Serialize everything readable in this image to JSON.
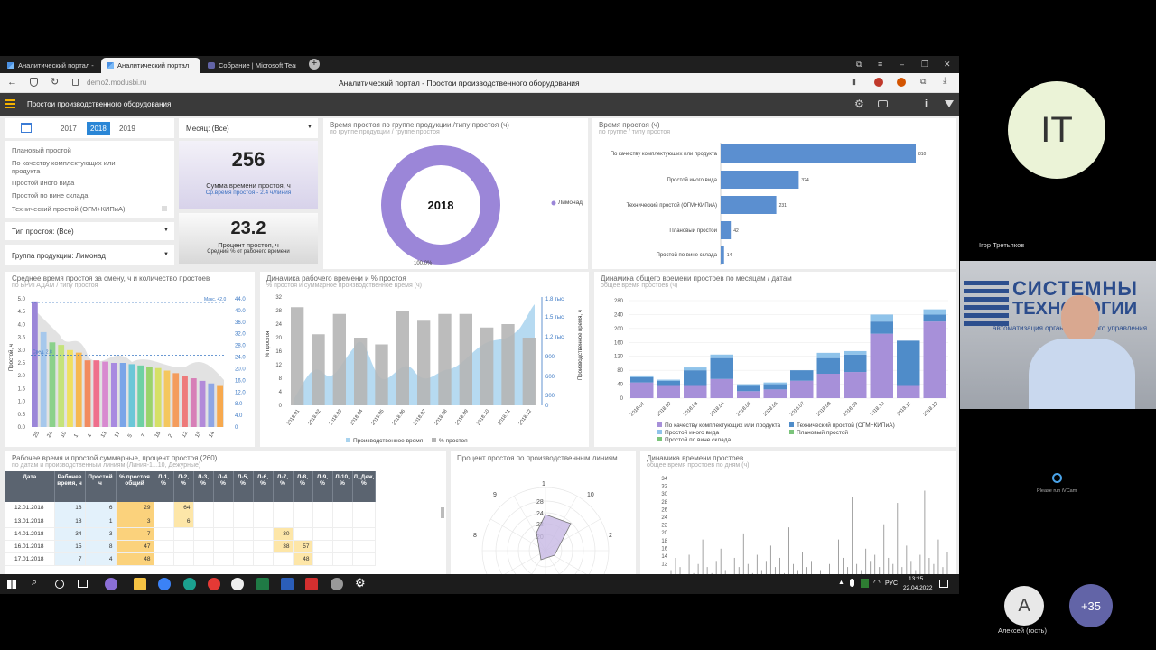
{
  "browser": {
    "tabs": [
      {
        "label": "Аналитический портал -"
      },
      {
        "label": "Аналитический портал"
      },
      {
        "label": "Собрание | Microsoft Teams"
      }
    ],
    "url": "demo2.modusbi.ru",
    "page_title": "Аналитический портал - Простои производственного оборудования"
  },
  "app": {
    "title": "Простои производственного оборудования"
  },
  "filters": {
    "years": [
      "2017",
      "2018",
      "2019"
    ],
    "selected_year": "2018",
    "month": "Месяц: (Все)",
    "downtime_types": [
      "Плановый простой",
      "По качеству комплектующих или продукта",
      "Простой иного вида",
      "Простой по вине склада",
      "Технический простой (ОГМ+КИПиА)"
    ],
    "type": "Тип простоя: (Все)",
    "group": "Группа продукции: Лимонад"
  },
  "kpi": {
    "total": "256",
    "total_label": "Сумма времени простоя, ч",
    "total_sub": "Ср.время простоя - 2.4 ч/линия",
    "pct": "23.2",
    "pct_label": "Процент простоя, ч",
    "pct_sub": "Средний % от рабочего времени"
  },
  "donut": {
    "title": "Время простоя по группе продукции /типу простоя (ч)",
    "sub": "по группе продукции / группе простоя",
    "center": "2018",
    "legend": "Лимонад",
    "bottom": "100.0%"
  },
  "hbar": {
    "title": "Время простоя (ч)",
    "sub": "по группе / типу простоя"
  },
  "brigade": {
    "title": "Среднее время простоя за смену, ч и количество простоев",
    "sub": "по БРИГАДАМ / типу простоя",
    "max_label": "Макс. 42.0",
    "avg_label": "Сред. 2.8",
    "ylabel": "Простой, ч",
    "yticks_left": [
      "5.0",
      "4.5",
      "4.0",
      "3.5",
      "3.0",
      "2.5",
      "2.0",
      "1.5",
      "1.0",
      "0.5",
      "0.0"
    ],
    "yticks_right": [
      "44.0",
      "40.0",
      "36.0",
      "32.0",
      "28.0",
      "24.0",
      "20.0",
      "16.0",
      "12.0",
      "8.0",
      "4.0",
      "0"
    ]
  },
  "dynamics": {
    "title": "Динамика рабочего времени и % простоя",
    "sub": "% простоя и суммарное производственное время (ч)",
    "ylabel": "% простоя",
    "y2label": "Производственное время, ч",
    "yticks": [
      "32",
      "28",
      "24",
      "20",
      "16",
      "12",
      "8",
      "4",
      "0"
    ],
    "y2ticks": [
      "1.8 тыс",
      "1.5 тыс",
      "1.2 тыс",
      "900",
      "600",
      "300",
      "0"
    ],
    "legend_a": "Производственное время",
    "legend_b": "% простоя"
  },
  "monthly": {
    "title": "Динамика общего времени простоев по месяцам / датам",
    "sub": "общее время простоев (ч)",
    "yticks": [
      "280",
      "240",
      "200",
      "160",
      "120",
      "80",
      "40",
      "0"
    ],
    "legend": [
      "По качеству комплектующих или продукта",
      "Технический простой (ОГМ+КИПиА)",
      "Простой иного вида",
      "Плановый простой",
      "Простой по вине склада"
    ]
  },
  "table": {
    "title": "Рабочее время и простой суммарные, процент простоя (260)",
    "sub": "по датам и производственным линиям (Линия-1...10, Дежурные)",
    "headers": [
      "Дата",
      "Рабочее время, ч",
      "Простой ч",
      "% простоя общий",
      "Л-1, %",
      "Л-2, %",
      "Л-3, %",
      "Л-4, %",
      "Л-5, %",
      "Л-6, %",
      "Л-7, %",
      "Л-8, %",
      "Л-9, %",
      "Л-10, %",
      "Л_Деж, %"
    ],
    "rows": [
      [
        "12.01.2018",
        "18",
        "6",
        "29",
        "",
        "64",
        "",
        "",
        "",
        "",
        "",
        "",
        "",
        "",
        ""
      ],
      [
        "13.01.2018",
        "18",
        "1",
        "3",
        "",
        "6",
        "",
        "",
        "",
        "",
        "",
        "",
        "",
        "",
        ""
      ],
      [
        "14.01.2018",
        "34",
        "3",
        "7",
        "",
        "",
        "",
        "",
        "",
        "",
        "30",
        "",
        "",
        "",
        ""
      ],
      [
        "16.01.2018",
        "15",
        "8",
        "47",
        "",
        "",
        "",
        "",
        "",
        "",
        "38",
        "57",
        "",
        "",
        ""
      ],
      [
        "17.01.2018",
        "7",
        "4",
        "48",
        "",
        "",
        "",
        "",
        "",
        "",
        "",
        "48",
        "",
        "",
        ""
      ]
    ]
  },
  "radar": {
    "title": "Процент простоя по производственным линиям",
    "labels": [
      "1",
      "10",
      "2",
      "9",
      "8"
    ],
    "ticks": [
      "28",
      "24",
      "22",
      "20"
    ]
  },
  "daily": {
    "title": "Динамика времени простоев",
    "sub": "общее время простоев по дням (ч)",
    "yticks": [
      "34",
      "32",
      "30",
      "28",
      "26",
      "24",
      "22",
      "20",
      "18",
      "16",
      "14",
      "12"
    ]
  },
  "taskbar": {
    "lang": "РУС",
    "time": "13:25",
    "date": "22.04.2022"
  },
  "call": {
    "initials_main": "IT",
    "name_main": "Ігор Третьяков",
    "vcam": "Please run iVCam",
    "guest_initial": "А",
    "guest_name": "Алексей (гость)",
    "more": "+35",
    "video_text_1": "СИСТЕМНЫ",
    "video_text_2": "ТЕХНОЛОГИИ",
    "video_text_3": "автоматизация организационного управления"
  },
  "colors": {
    "accent": "#1a73e8",
    "donut": "#9b86d8",
    "hbar": "#5b8fd0",
    "grey_bar": "#b5b5b5",
    "light_blue": "#a9d3ee"
  }
}
